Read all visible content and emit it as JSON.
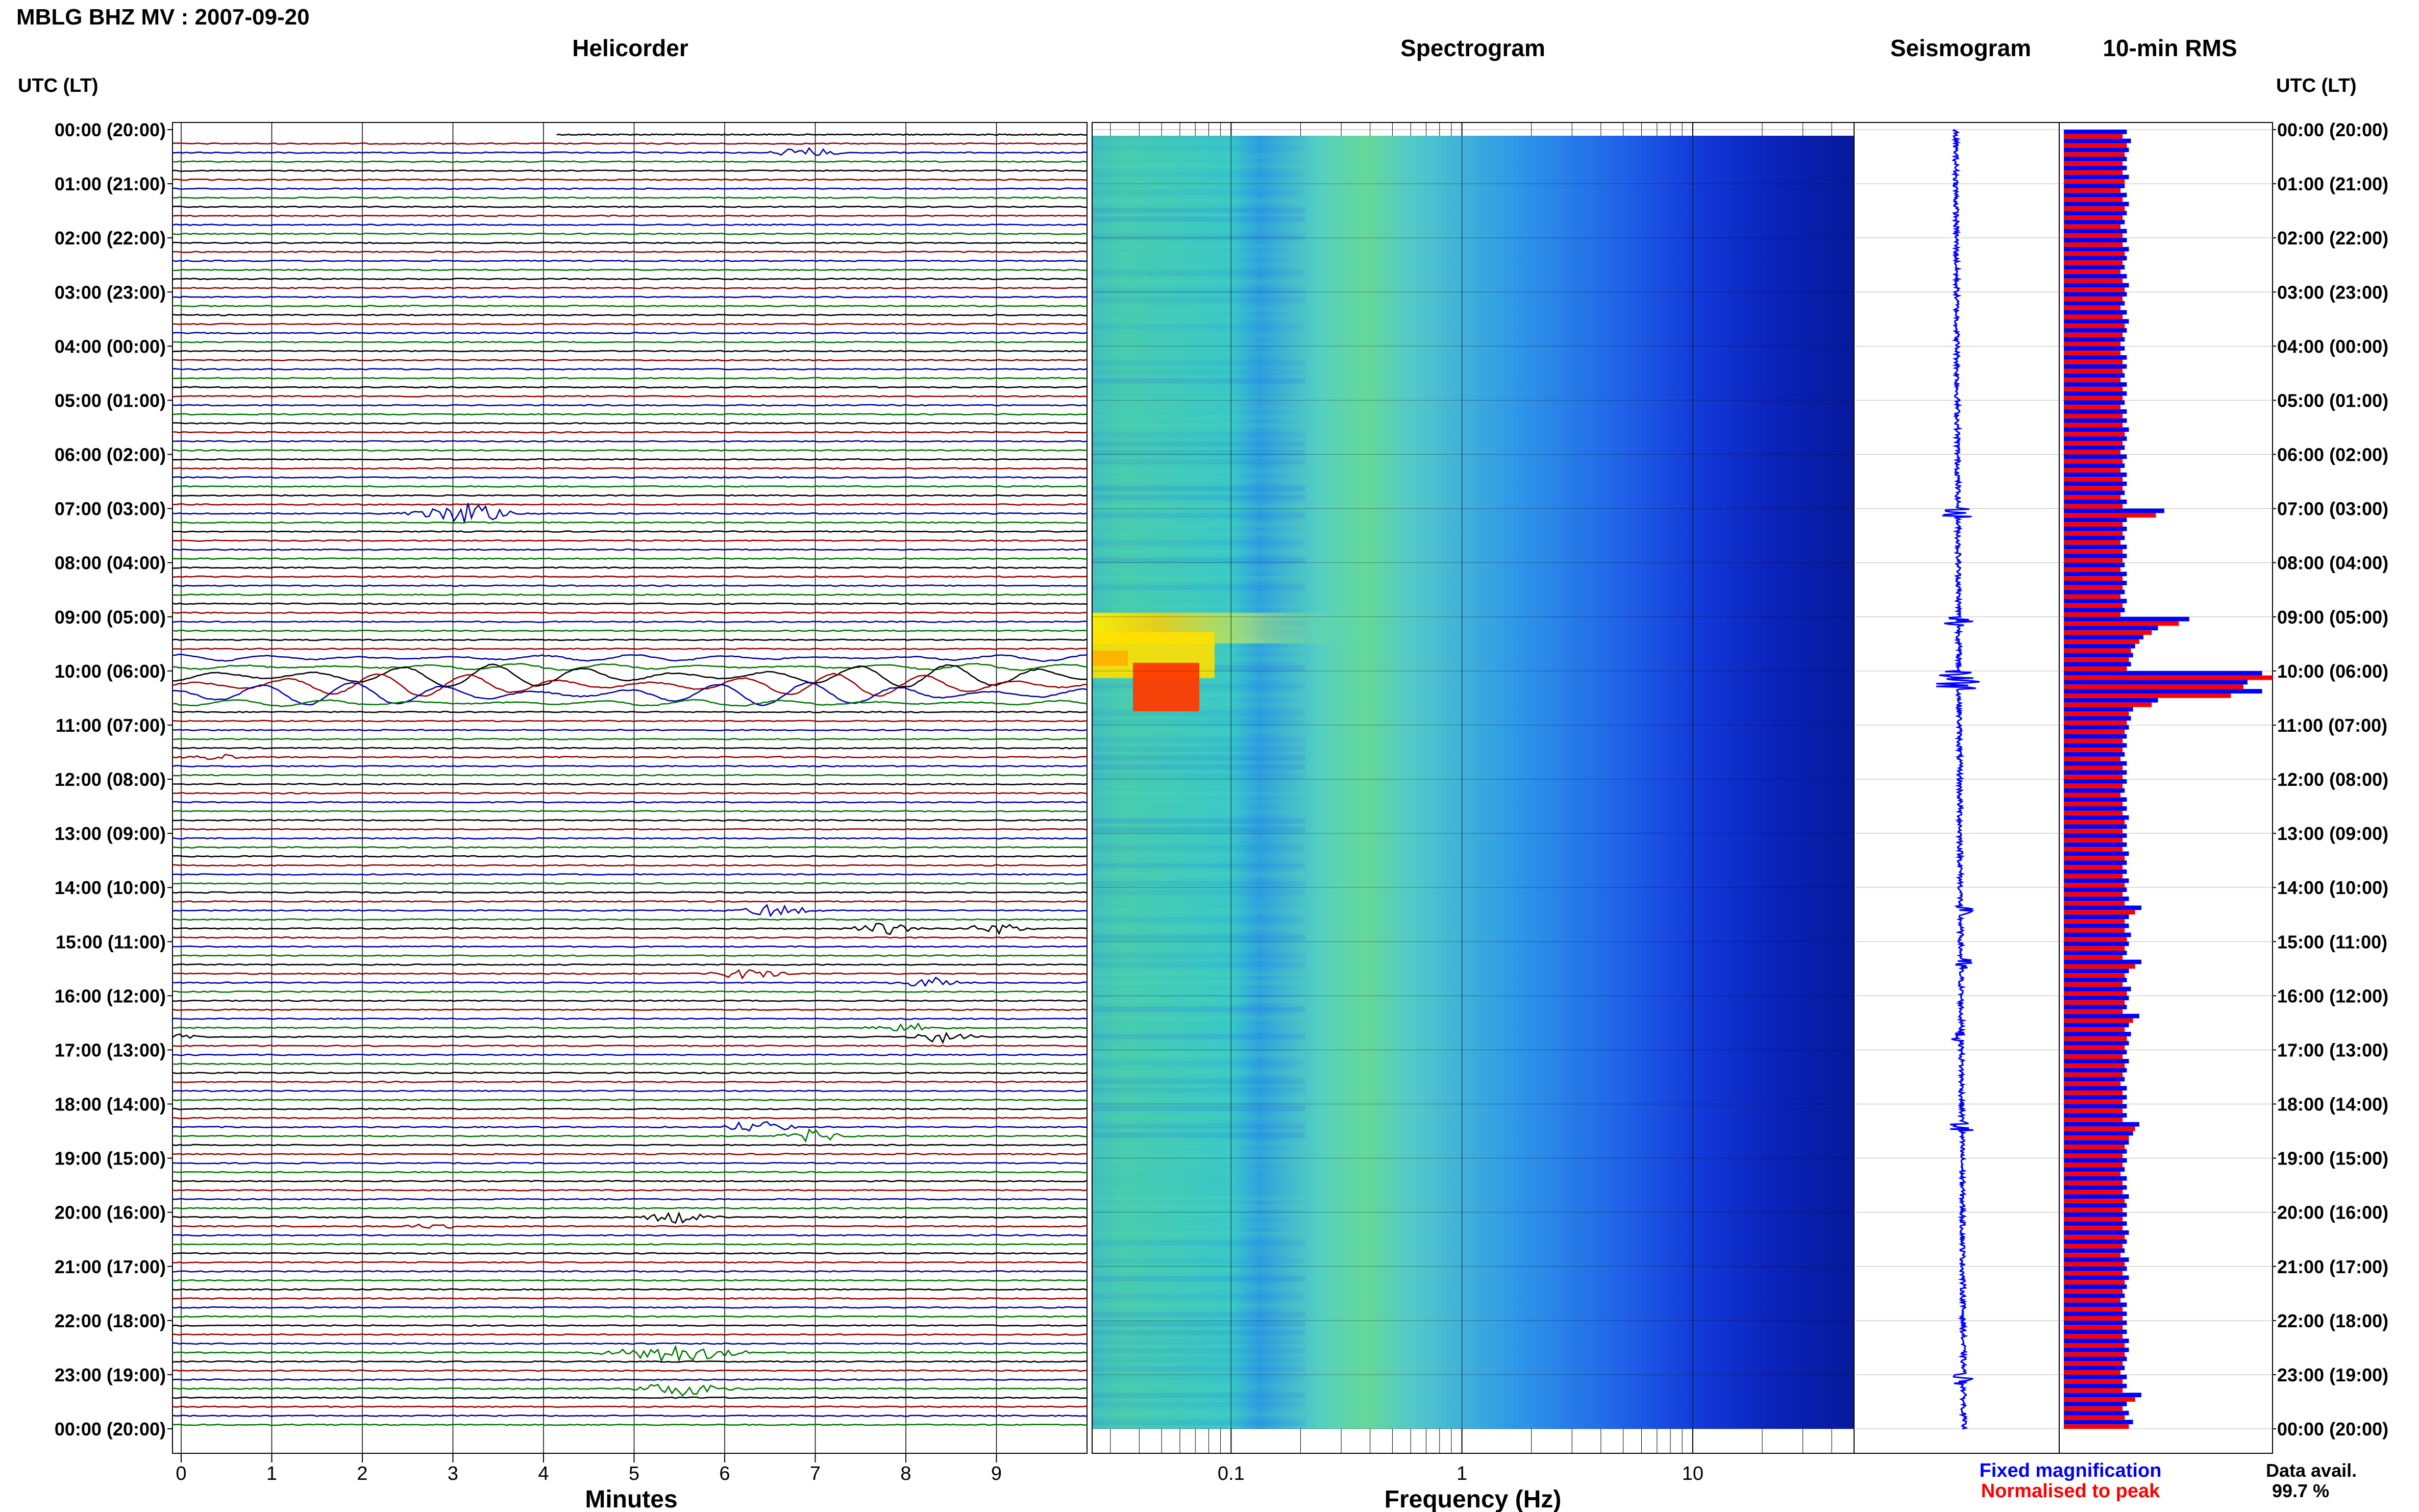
{
  "header": {
    "station_title": "MBLG BHZ MV : 2007-09-20",
    "utc_label": "UTC (LT)"
  },
  "panels": {
    "helicorder": "Helicorder",
    "spectrogram": "Spectrogram",
    "seismogram": "Seismogram",
    "rms": "10-min RMS"
  },
  "axis_labels": {
    "minutes": "Minutes",
    "frequency": "Frequency (Hz)"
  },
  "legend": {
    "fixed": "Fixed magnification",
    "normalised": "Normalised to peak",
    "fixed_color": "#0000ff",
    "normalised_color": "#ff0000"
  },
  "data_avail": {
    "label": "Data avail.",
    "value": "99.7 %"
  },
  "colors": {
    "trace_cycle": [
      "#000000",
      "#990000",
      "#0000aa",
      "#007700"
    ],
    "rms_fixed": "#0000ff",
    "rms_norm": "#ff0000",
    "seismogram": "#0000ff"
  },
  "chart_data": {
    "type": "heatmap",
    "time_ticks": [
      "00:00 (20:00)",
      "01:00 (21:00)",
      "02:00 (22:00)",
      "03:00 (23:00)",
      "04:00 (00:00)",
      "05:00 (01:00)",
      "06:00 (02:00)",
      "07:00 (03:00)",
      "08:00 (04:00)",
      "09:00 (05:00)",
      "10:00 (06:00)",
      "11:00 (07:00)",
      "12:00 (08:00)",
      "13:00 (09:00)",
      "14:00 (10:00)",
      "15:00 (11:00)",
      "16:00 (12:00)",
      "17:00 (13:00)",
      "18:00 (14:00)",
      "19:00 (15:00)",
      "20:00 (16:00)",
      "21:00 (17:00)",
      "22:00 (18:00)",
      "23:00 (19:00)",
      "00:00 (20:00)"
    ],
    "minute_ticks": [
      "0",
      "1",
      "2",
      "3",
      "4",
      "5",
      "6",
      "7",
      "8",
      "9"
    ],
    "frequency_ticks": [
      "0.1",
      "1",
      "10"
    ],
    "frequency_range_hz": [
      0.025,
      50
    ],
    "minutes_range": [
      0,
      10
    ],
    "rows_per_hour": 6,
    "hours": 24,
    "rms_fixed": [
      0.3,
      0.32,
      0.31,
      0.3,
      0.3,
      0.31,
      0.29,
      0.3,
      0.31,
      0.3,
      0.29,
      0.3,
      0.3,
      0.31,
      0.3,
      0.29,
      0.3,
      0.31,
      0.3,
      0.29,
      0.3,
      0.31,
      0.3,
      0.29,
      0.29,
      0.3,
      0.3,
      0.29,
      0.3,
      0.3,
      0.29,
      0.3,
      0.3,
      0.31,
      0.3,
      0.29,
      0.3,
      0.29,
      0.3,
      0.3,
      0.29,
      0.3,
      0.48,
      0.3,
      0.3,
      0.29,
      0.3,
      0.3,
      0.29,
      0.3,
      0.3,
      0.29,
      0.3,
      0.29,
      0.6,
      0.45,
      0.38,
      0.34,
      0.33,
      0.32,
      0.95,
      0.88,
      0.95,
      0.45,
      0.33,
      0.32,
      0.31,
      0.3,
      0.3,
      0.29,
      0.3,
      0.3,
      0.3,
      0.29,
      0.3,
      0.3,
      0.31,
      0.3,
      0.3,
      0.3,
      0.31,
      0.3,
      0.3,
      0.31,
      0.3,
      0.31,
      0.37,
      0.31,
      0.31,
      0.32,
      0.31,
      0.3,
      0.37,
      0.31,
      0.3,
      0.32,
      0.31,
      0.3,
      0.36,
      0.31,
      0.32,
      0.31,
      0.3,
      0.31,
      0.3,
      0.29,
      0.3,
      0.3,
      0.3,
      0.3,
      0.36,
      0.33,
      0.31,
      0.3,
      0.3,
      0.29,
      0.3,
      0.3,
      0.31,
      0.3,
      0.3,
      0.3,
      0.31,
      0.3,
      0.29,
      0.31,
      0.3,
      0.31,
      0.3,
      0.29,
      0.3,
      0.3,
      0.3,
      0.3,
      0.31,
      0.31,
      0.3,
      0.29,
      0.3,
      0.3,
      0.37,
      0.3,
      0.31,
      0.33
    ],
    "rms_normalised": [
      0.28,
      0.3,
      0.29,
      0.28,
      0.28,
      0.29,
      0.27,
      0.28,
      0.29,
      0.28,
      0.27,
      0.28,
      0.28,
      0.29,
      0.28,
      0.27,
      0.28,
      0.29,
      0.28,
      0.27,
      0.28,
      0.29,
      0.28,
      0.27,
      0.27,
      0.28,
      0.28,
      0.27,
      0.28,
      0.28,
      0.27,
      0.28,
      0.28,
      0.29,
      0.28,
      0.27,
      0.28,
      0.27,
      0.28,
      0.28,
      0.27,
      0.28,
      0.44,
      0.28,
      0.28,
      0.27,
      0.28,
      0.28,
      0.27,
      0.28,
      0.28,
      0.27,
      0.28,
      0.27,
      0.55,
      0.42,
      0.36,
      0.32,
      0.31,
      0.3,
      1.0,
      0.86,
      0.8,
      0.42,
      0.31,
      0.3,
      0.29,
      0.28,
      0.28,
      0.27,
      0.28,
      0.28,
      0.28,
      0.27,
      0.28,
      0.28,
      0.29,
      0.28,
      0.28,
      0.28,
      0.29,
      0.28,
      0.28,
      0.29,
      0.28,
      0.29,
      0.34,
      0.29,
      0.29,
      0.3,
      0.29,
      0.28,
      0.34,
      0.29,
      0.28,
      0.3,
      0.29,
      0.28,
      0.33,
      0.29,
      0.3,
      0.29,
      0.28,
      0.29,
      0.28,
      0.27,
      0.28,
      0.28,
      0.28,
      0.28,
      0.34,
      0.31,
      0.29,
      0.28,
      0.28,
      0.27,
      0.28,
      0.28,
      0.29,
      0.28,
      0.28,
      0.28,
      0.29,
      0.28,
      0.27,
      0.29,
      0.28,
      0.29,
      0.28,
      0.27,
      0.28,
      0.28,
      0.28,
      0.28,
      0.29,
      0.29,
      0.28,
      0.27,
      0.28,
      0.28,
      0.34,
      0.28,
      0.29,
      0.31
    ]
  }
}
